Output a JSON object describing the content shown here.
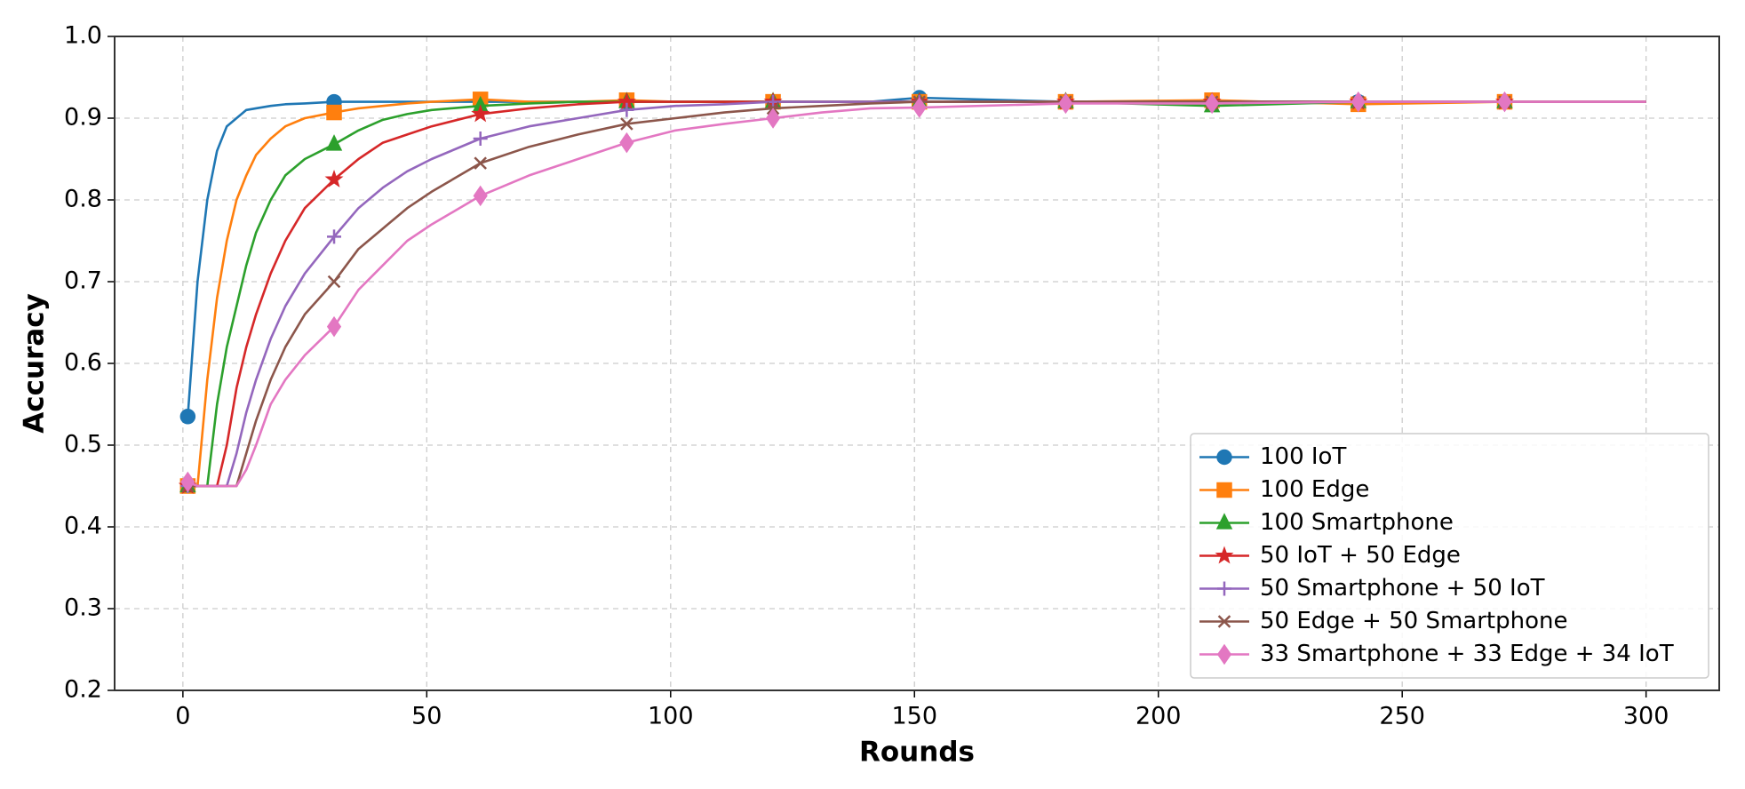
{
  "chart_data": {
    "type": "line",
    "x_label": "Rounds",
    "y_label": "Accuracy",
    "x": [
      1,
      3,
      5,
      7,
      9,
      11,
      13,
      15,
      18,
      21,
      25,
      31,
      36,
      41,
      46,
      51,
      61,
      71,
      81,
      91,
      101,
      111,
      121,
      131,
      141,
      151,
      181,
      211,
      241,
      271,
      300
    ],
    "series": [
      {
        "name": "100 IoT",
        "color": "#1f77b4",
        "marker": "circle",
        "values": [
          0.535,
          0.7,
          0.8,
          0.86,
          0.89,
          0.9,
          0.91,
          0.912,
          0.915,
          0.917,
          0.918,
          0.92,
          0.92,
          0.92,
          0.92,
          0.92,
          0.92,
          0.92,
          0.92,
          0.92,
          0.92,
          0.92,
          0.92,
          0.92,
          0.92,
          0.925,
          0.92,
          0.92,
          0.92,
          0.92,
          0.92
        ]
      },
      {
        "name": "100 Edge",
        "color": "#ff7f0e",
        "marker": "square",
        "values": [
          0.45,
          0.45,
          0.58,
          0.68,
          0.75,
          0.8,
          0.83,
          0.855,
          0.875,
          0.89,
          0.9,
          0.907,
          0.912,
          0.915,
          0.918,
          0.92,
          0.923,
          0.92,
          0.92,
          0.922,
          0.92,
          0.92,
          0.92,
          0.92,
          0.92,
          0.92,
          0.92,
          0.922,
          0.917,
          0.92,
          0.92
        ]
      },
      {
        "name": "100 Smartphone",
        "color": "#2ca02c",
        "marker": "triangle",
        "values": [
          0.45,
          0.45,
          0.45,
          0.55,
          0.62,
          0.67,
          0.72,
          0.76,
          0.8,
          0.83,
          0.85,
          0.868,
          0.885,
          0.898,
          0.905,
          0.91,
          0.915,
          0.918,
          0.92,
          0.92,
          0.92,
          0.92,
          0.92,
          0.92,
          0.92,
          0.92,
          0.92,
          0.915,
          0.92,
          0.92,
          0.92
        ]
      },
      {
        "name": "50 IoT + 50 Edge",
        "color": "#d62728",
        "marker": "star",
        "values": [
          0.45,
          0.45,
          0.45,
          0.45,
          0.5,
          0.57,
          0.62,
          0.66,
          0.71,
          0.75,
          0.79,
          0.825,
          0.85,
          0.87,
          0.88,
          0.89,
          0.905,
          0.912,
          0.917,
          0.92,
          0.92,
          0.92,
          0.92,
          0.92,
          0.92,
          0.92,
          0.92,
          0.92,
          0.92,
          0.92,
          0.92
        ]
      },
      {
        "name": "50 Smartphone + 50 IoT",
        "color": "#9467bd",
        "marker": "plus",
        "values": [
          0.45,
          0.45,
          0.45,
          0.45,
          0.45,
          0.49,
          0.54,
          0.58,
          0.63,
          0.67,
          0.71,
          0.755,
          0.79,
          0.815,
          0.835,
          0.85,
          0.875,
          0.89,
          0.9,
          0.91,
          0.915,
          0.917,
          0.92,
          0.92,
          0.92,
          0.92,
          0.92,
          0.92,
          0.92,
          0.92,
          0.92
        ]
      },
      {
        "name": "50 Edge + 50 Smartphone",
        "color": "#8c564b",
        "marker": "x",
        "values": [
          0.45,
          0.45,
          0.45,
          0.45,
          0.45,
          0.45,
          0.49,
          0.53,
          0.58,
          0.62,
          0.66,
          0.7,
          0.74,
          0.765,
          0.79,
          0.81,
          0.845,
          0.865,
          0.88,
          0.893,
          0.9,
          0.907,
          0.912,
          0.915,
          0.918,
          0.92,
          0.92,
          0.92,
          0.92,
          0.92,
          0.92
        ]
      },
      {
        "name": "33 Smartphone + 33 Edge + 34 IoT",
        "color": "#e377c2",
        "marker": "diamond",
        "values": [
          0.455,
          0.45,
          0.45,
          0.45,
          0.45,
          0.45,
          0.47,
          0.5,
          0.55,
          0.58,
          0.61,
          0.645,
          0.69,
          0.72,
          0.75,
          0.77,
          0.805,
          0.83,
          0.85,
          0.87,
          0.885,
          0.893,
          0.9,
          0.907,
          0.912,
          0.913,
          0.918,
          0.918,
          0.92,
          0.92,
          0.92
        ]
      }
    ],
    "xlim": [
      -14,
      315
    ],
    "ylim": [
      0.2,
      1
    ],
    "xticks": [
      0,
      50,
      100,
      150,
      200,
      250,
      300
    ],
    "yticks": [
      0.2,
      0.3,
      0.4,
      0.5,
      0.6,
      0.7,
      0.8,
      0.9,
      {
        "value": 1,
        "label": "1.0"
      }
    ],
    "grid": true,
    "legend": "lower right"
  }
}
